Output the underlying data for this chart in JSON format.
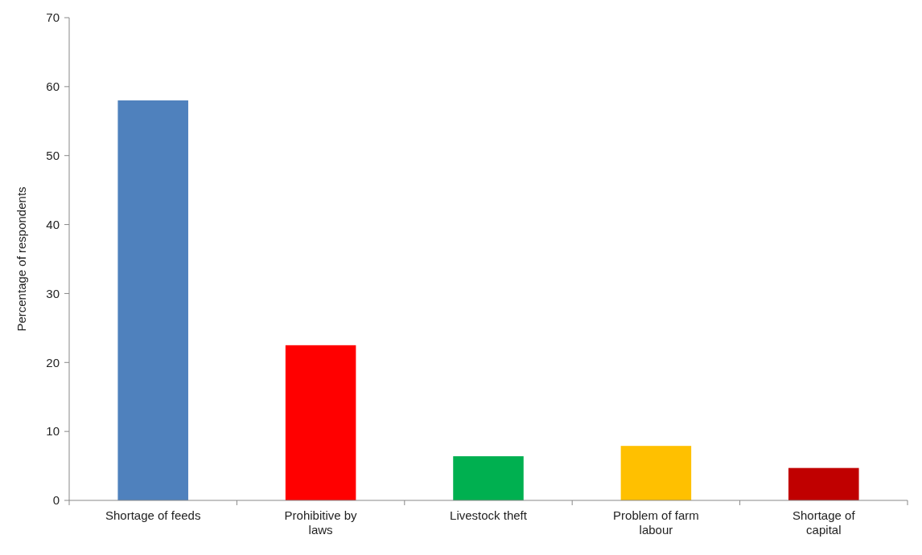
{
  "chart_data": {
    "type": "bar",
    "ylabel": "Percentage of respondents",
    "categories": [
      "Shortage of feeds",
      "Prohibitive by laws",
      "Livestock theft",
      "Problem of farm labour",
      "Shortage of capital"
    ],
    "values": [
      58,
      22.5,
      6.4,
      7.9,
      4.7
    ],
    "colors": [
      "#4f81bd",
      "#ff0000",
      "#00b050",
      "#ffc000",
      "#c00000"
    ],
    "ylim": [
      0,
      70
    ],
    "yticks": [
      0,
      10,
      20,
      30,
      40,
      50,
      60,
      70
    ],
    "grid": false
  }
}
